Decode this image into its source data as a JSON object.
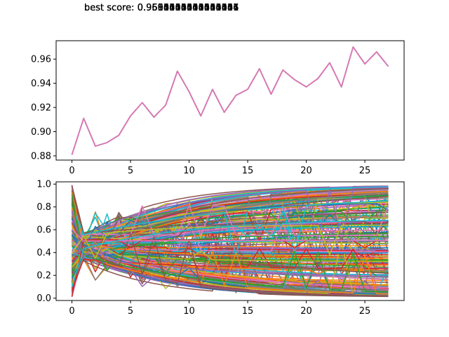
{
  "figure": {
    "overlay_texts": [
      "best score: 0.9500000000000001",
      "best score: 0.9555555555555556",
      "best score: 0.9611111111111111",
      "best score: 0.9666666666666667",
      "best score: 0.9694444444444444"
    ]
  },
  "chart_data": [
    {
      "type": "line",
      "title": "",
      "xlabel": "",
      "ylabel": "",
      "xlim": [
        -1.35,
        28.35
      ],
      "ylim": [
        0.8765,
        0.9752
      ],
      "xticks": [
        0,
        5,
        10,
        15,
        20,
        25
      ],
      "yticks": [
        0.88,
        0.9,
        0.92,
        0.94,
        0.96
      ],
      "ytick_labels": [
        "0.88",
        "0.90",
        "0.92",
        "0.94",
        "0.96"
      ],
      "grid": false,
      "colors": [
        "#1f77b4",
        "#ff7f0e",
        "#2ca02c",
        "#d62728",
        "#9467bd",
        "#8c564b",
        "#e377c2"
      ],
      "x": [
        0,
        1,
        2,
        3,
        4,
        5,
        6,
        7,
        8,
        9,
        10,
        11,
        12,
        13,
        14,
        15,
        16,
        17,
        18,
        19,
        20,
        21,
        22,
        23,
        24,
        25,
        26,
        27
      ],
      "values": [
        0.881,
        0.911,
        0.888,
        0.891,
        0.897,
        0.913,
        0.924,
        0.912,
        0.922,
        0.95,
        0.933,
        0.913,
        0.935,
        0.916,
        0.93,
        0.935,
        0.952,
        0.931,
        0.951,
        0.943,
        0.937,
        0.944,
        0.957,
        0.937,
        0.97,
        0.956,
        0.966,
        0.954
      ]
    },
    {
      "type": "line",
      "title": "",
      "xlabel": "",
      "ylabel": "",
      "xlim": [
        -1.35,
        28.35
      ],
      "ylim": [
        -0.0203,
        1.0199
      ],
      "xticks": [
        0,
        5,
        10,
        15,
        20,
        25
      ],
      "yticks": [
        0.0,
        0.2,
        0.4,
        0.6,
        0.8,
        1.0
      ],
      "ytick_labels": [
        "0.0",
        "0.2",
        "0.4",
        "0.6",
        "0.8",
        "1.0"
      ],
      "grid": false,
      "x": [
        0,
        1,
        2,
        3,
        4,
        5,
        6,
        7,
        8,
        9,
        10,
        11,
        12,
        13,
        14,
        15,
        16,
        17,
        18,
        19,
        20,
        21,
        22,
        23,
        24,
        25,
        26,
        27
      ],
      "colors": [
        "#1f77b4",
        "#ff7f0e",
        "#2ca02c",
        "#d62728",
        "#9467bd",
        "#8c564b",
        "#e377c2",
        "#7f7f7f",
        "#bcbd22",
        "#17becf"
      ],
      "series_count": 260,
      "center_value_at_x1": 0.45,
      "curve_low": 0.01,
      "curve_high": 0.99,
      "rate": 0.11
    }
  ]
}
